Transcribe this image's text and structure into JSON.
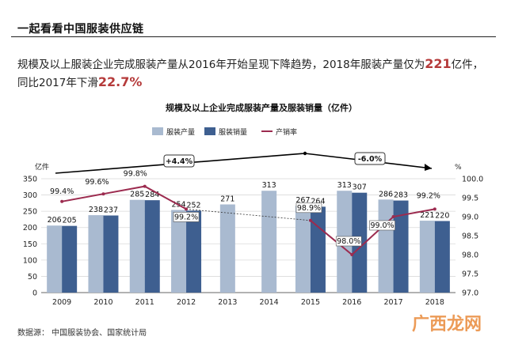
{
  "header": {
    "title": "一起看看中国服装供应链"
  },
  "summary": {
    "part1": "规模及以上服装企业完成服装产量从2016年开始呈现下降趋势，2018年服装产量仅为",
    "value1": "221",
    "part2": "亿件，同比2017年下滑",
    "value2": "22.7%"
  },
  "footer": {
    "source": "数据源：  中国服装协会、国家统计局"
  },
  "watermark": {
    "text": "广西龙网"
  },
  "colors": {
    "production": "#a9bad0",
    "sales": "#3e5f90",
    "rate": "#9c2b4f",
    "trend": "#000000"
  },
  "chart_data": {
    "type": "bar",
    "title": "规模及以上企业完成服装产量及服装销量（亿件）",
    "categories": [
      "2009",
      "2010",
      "2011",
      "2012",
      "2013",
      "2014",
      "2015",
      "2016",
      "2017",
      "2018"
    ],
    "y_left_label": "亿件",
    "y_right_label": "%",
    "ylim_left": [
      0,
      350
    ],
    "ylim_right": [
      97.0,
      100.0
    ],
    "yticks_left": [
      "0",
      "50",
      "100",
      "150",
      "200",
      "250",
      "300",
      "350"
    ],
    "yticks_right": [
      "97.0",
      "97.5",
      "98.0",
      "98.5",
      "99.0",
      "99.5",
      "100.0"
    ],
    "series": [
      {
        "name": "服装产量",
        "values": [
          206,
          238,
          285,
          254,
          271,
          313,
          267,
          313,
          286,
          221
        ]
      },
      {
        "name": "服装销量",
        "values": [
          205,
          237,
          284,
          252,
          null,
          null,
          264,
          307,
          283,
          220
        ]
      },
      {
        "name": "产销率",
        "values": [
          99.4,
          99.6,
          99.8,
          99.2,
          null,
          null,
          98.9,
          98.0,
          99.0,
          99.2
        ],
        "labels": [
          "99.4%",
          "99.6%",
          "99.8%",
          "99.2%",
          "",
          "",
          "98.9%",
          "98.0%",
          "99.0%",
          "99.2%"
        ]
      }
    ],
    "annotations": [
      "+4.4%",
      "-6.0%"
    ],
    "legend_position": "top"
  }
}
